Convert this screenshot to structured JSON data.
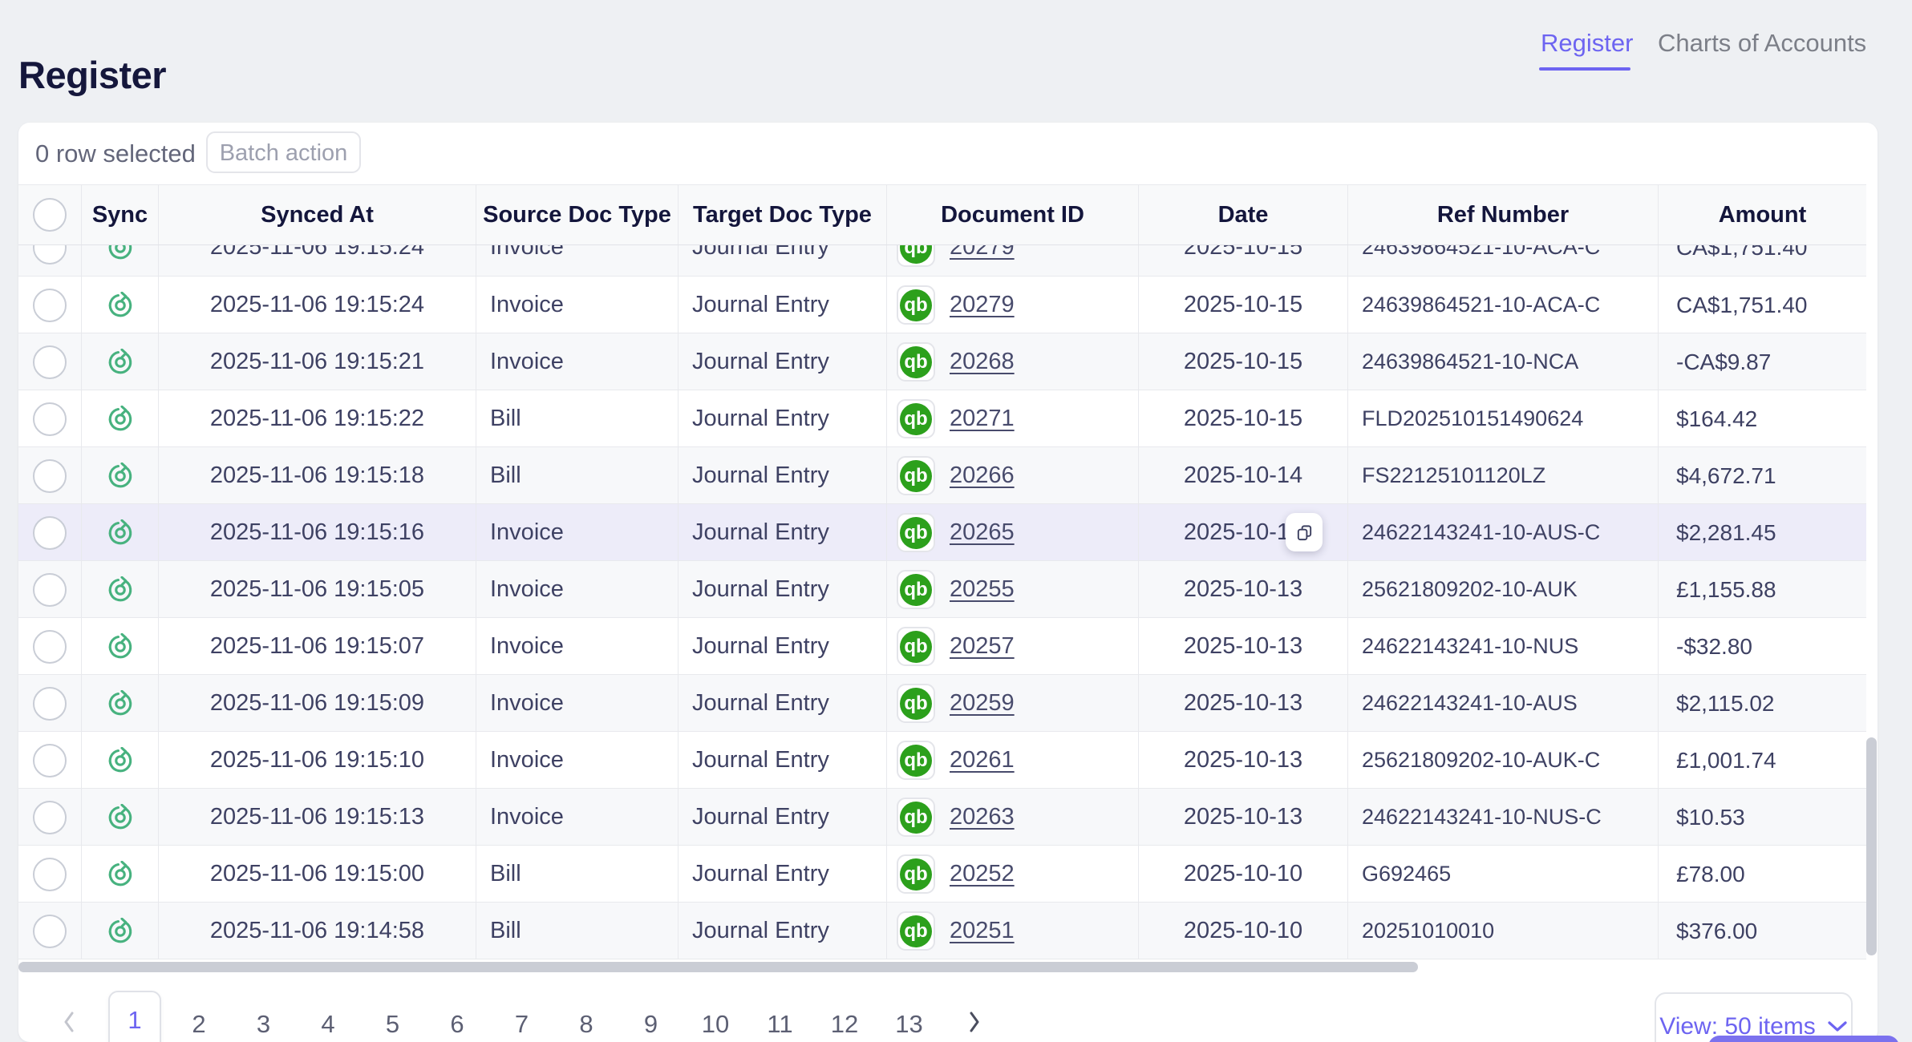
{
  "page": {
    "title": "Register"
  },
  "tabs": [
    {
      "label": "Register",
      "active": true
    },
    {
      "label": "Charts of Accounts",
      "active": false
    }
  ],
  "toolbar": {
    "selection_text": "0 row selected",
    "batch_action_label": "Batch action"
  },
  "table": {
    "columns": [
      {
        "key": "check",
        "label": ""
      },
      {
        "key": "sync",
        "label": "Sync"
      },
      {
        "key": "synced_at",
        "label": "Synced At"
      },
      {
        "key": "source",
        "label": "Source Doc Type"
      },
      {
        "key": "target",
        "label": "Target Doc Type"
      },
      {
        "key": "doc_id",
        "label": "Document ID"
      },
      {
        "key": "date",
        "label": "Date"
      },
      {
        "key": "ref",
        "label": "Ref Number"
      },
      {
        "key": "amount",
        "label": "Amount"
      }
    ],
    "partial_top_row_visible": true,
    "rows": [
      {
        "synced_at": "2025-11-06 19:15:24",
        "source": "Invoice",
        "target": "Journal Entry",
        "doc_id": "20279",
        "date": "2025-10-15",
        "ref": "24639864521-10-ACA-C",
        "amount": "CA$1,751.40"
      },
      {
        "synced_at": "2025-11-06 19:15:21",
        "source": "Invoice",
        "target": "Journal Entry",
        "doc_id": "20268",
        "date": "2025-10-15",
        "ref": "24639864521-10-NCA",
        "amount": "-CA$9.87"
      },
      {
        "synced_at": "2025-11-06 19:15:22",
        "source": "Bill",
        "target": "Journal Entry",
        "doc_id": "20271",
        "date": "2025-10-15",
        "ref": "FLD202510151490624",
        "amount": "$164.42"
      },
      {
        "synced_at": "2025-11-06 19:15:18",
        "source": "Bill",
        "target": "Journal Entry",
        "doc_id": "20266",
        "date": "2025-10-14",
        "ref": "FS22125101120LZ",
        "amount": "$4,672.71"
      },
      {
        "synced_at": "2025-11-06 19:15:16",
        "source": "Invoice",
        "target": "Journal Entry",
        "doc_id": "20265",
        "date": "2025-10-13",
        "ref": "24622143241-10-AUS-C",
        "amount": "$2,281.45",
        "highlighted": true,
        "copy_button": true
      },
      {
        "synced_at": "2025-11-06 19:15:05",
        "source": "Invoice",
        "target": "Journal Entry",
        "doc_id": "20255",
        "date": "2025-10-13",
        "ref": "25621809202-10-AUK",
        "amount": "£1,155.88"
      },
      {
        "synced_at": "2025-11-06 19:15:07",
        "source": "Invoice",
        "target": "Journal Entry",
        "doc_id": "20257",
        "date": "2025-10-13",
        "ref": "24622143241-10-NUS",
        "amount": "-$32.80"
      },
      {
        "synced_at": "2025-11-06 19:15:09",
        "source": "Invoice",
        "target": "Journal Entry",
        "doc_id": "20259",
        "date": "2025-10-13",
        "ref": "24622143241-10-AUS",
        "amount": "$2,115.02"
      },
      {
        "synced_at": "2025-11-06 19:15:10",
        "source": "Invoice",
        "target": "Journal Entry",
        "doc_id": "20261",
        "date": "2025-10-13",
        "ref": "25621809202-10-AUK-C",
        "amount": "£1,001.74"
      },
      {
        "synced_at": "2025-11-06 19:15:13",
        "source": "Invoice",
        "target": "Journal Entry",
        "doc_id": "20263",
        "date": "2025-10-13",
        "ref": "24622143241-10-NUS-C",
        "amount": "$10.53"
      },
      {
        "synced_at": "2025-11-06 19:15:00",
        "source": "Bill",
        "target": "Journal Entry",
        "doc_id": "20252",
        "date": "2025-10-10",
        "ref": "G692465",
        "amount": "£78.00"
      },
      {
        "synced_at": "2025-11-06 19:14:58",
        "source": "Bill",
        "target": "Journal Entry",
        "doc_id": "20251",
        "date": "2025-10-10",
        "ref": "20251010010",
        "amount": "$376.00"
      }
    ]
  },
  "pagination": {
    "pages": [
      "1",
      "2",
      "3",
      "4",
      "5",
      "6",
      "7",
      "8",
      "9",
      "10",
      "11",
      "12",
      "13"
    ],
    "active_page": "1",
    "prev_icon": "chevron-left",
    "next_icon": "chevron-right"
  },
  "view_selector": {
    "label": "View: 50 items"
  },
  "icons": {
    "sync_status": "circular-sync-arrow",
    "document_source": "quickbooks-logo",
    "copy": "copy-icon"
  },
  "colors": {
    "accent": "#6d64f1",
    "sync_green": "#47b27f",
    "quickbooks_green": "#2ca01c",
    "row_hover": "#edecf9",
    "row_stripe": "#f7f8fa",
    "scrollbar_thumb": "#cacdd5",
    "page_background": "#eef0f3"
  }
}
